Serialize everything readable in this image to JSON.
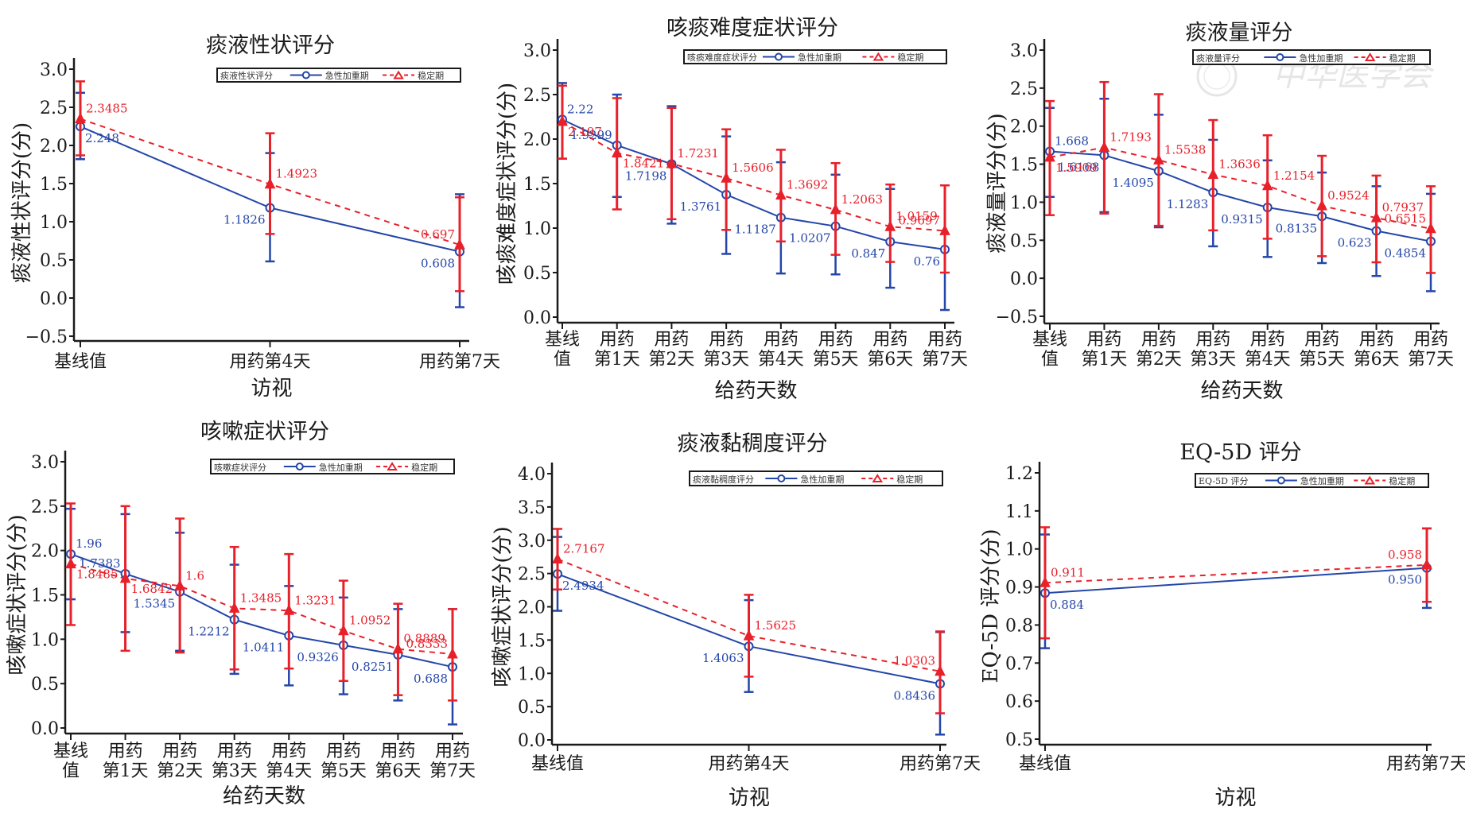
{
  "colors": {
    "acute": "#2446a8",
    "stable": "#e8202a",
    "axis": "#1a1a1a",
    "watermark": "#e3e3e3"
  },
  "watermark": {
    "text": "中华医学会"
  },
  "legend_series": {
    "acute": "急性加重期",
    "stable": "稳定期"
  },
  "chart_data": [
    {
      "type": "line",
      "title": "痰液性状评分",
      "xlabel": "访视",
      "ylabel": "痰液性状评分(分)",
      "legend_title": "痰液性状评分",
      "legend_position": "top-right",
      "ylim": [
        -0.5,
        3.0
      ],
      "yticks": [
        -0.5,
        0.0,
        0.5,
        1.0,
        1.5,
        2.0,
        2.5,
        3.0
      ],
      "ytick_labels": [
        "−0.5",
        "0.0",
        "0.5",
        "1.0",
        "1.5",
        "2.0",
        "2.5",
        "3.0"
      ],
      "categories": [
        [
          "基线值"
        ],
        [
          "用药第4天"
        ],
        [
          "用药第7天"
        ]
      ],
      "series": [
        {
          "name": "急性加重期",
          "key": "acute",
          "values": [
            2.248,
            1.1826,
            0.608
          ],
          "labels": [
            "2.248",
            "1.1826",
            "0.608"
          ],
          "err_low": [
            1.82,
            0.48,
            -0.12
          ],
          "err_high": [
            2.69,
            1.9,
            1.36
          ]
        },
        {
          "name": "稳定期",
          "key": "stable",
          "values": [
            2.3485,
            1.4923,
            0.697
          ],
          "labels": [
            "2.3485",
            "1.4923",
            "0.697"
          ],
          "err_low": [
            1.87,
            0.84,
            0.09
          ],
          "err_high": [
            2.84,
            2.16,
            1.32
          ]
        }
      ]
    },
    {
      "type": "line",
      "title": "咳痰难度症状评分",
      "xlabel": "给药天数",
      "ylabel": "咳痰难度症状评分(分)",
      "legend_title": "咳痰难度症状评分",
      "legend_position": "top-right",
      "ylim": [
        0.0,
        3.0
      ],
      "yticks": [
        0.0,
        0.5,
        1.0,
        1.5,
        2.0,
        2.5,
        3.0
      ],
      "ytick_labels": [
        "0.0",
        "0.5",
        "1.0",
        "1.5",
        "2.0",
        "2.5",
        "3.0"
      ],
      "categories": [
        [
          "基线",
          "值"
        ],
        [
          "用药",
          "第1天"
        ],
        [
          "用药",
          "第2天"
        ],
        [
          "用药",
          "第3天"
        ],
        [
          "用药",
          "第4天"
        ],
        [
          "用药",
          "第5天"
        ],
        [
          "用药",
          "第6天"
        ],
        [
          "用药",
          "第7天"
        ]
      ],
      "series": [
        {
          "name": "急性加重期",
          "key": "acute",
          "values": [
            2.22,
            1.9299,
            1.7198,
            1.3761,
            1.1187,
            1.0207,
            0.847,
            0.76
          ],
          "labels": [
            "2.22",
            "1.9299",
            "1.7198",
            "1.3761",
            "1.1187",
            "1.0207",
            "0.847",
            "0.76"
          ],
          "err_low": [
            1.78,
            1.35,
            1.05,
            0.71,
            0.49,
            0.48,
            0.33,
            0.08
          ],
          "err_high": [
            2.63,
            2.5,
            2.37,
            2.03,
            1.74,
            1.6,
            1.44,
            1.48
          ]
        },
        {
          "name": "稳定期",
          "key": "stable",
          "values": [
            2.197,
            1.8421,
            1.7231,
            1.5606,
            1.3692,
            1.2063,
            1.0159,
            0.9697
          ],
          "labels": [
            "2.197",
            "1.8421",
            "1.7231",
            "1.5606",
            "1.3692",
            "1.2063",
            "1.0159",
            "0.9697"
          ],
          "err_low": [
            1.78,
            1.21,
            1.1,
            0.98,
            0.85,
            0.7,
            0.62,
            0.5
          ],
          "err_high": [
            2.6,
            2.46,
            2.35,
            2.11,
            1.88,
            1.73,
            1.49,
            1.48
          ]
        }
      ]
    },
    {
      "type": "line",
      "title": "痰液量评分",
      "xlabel": "给药天数",
      "ylabel": "痰液量评分(分)",
      "legend_title": "痰液量评分",
      "legend_position": "top-right",
      "ylim": [
        -0.5,
        3.0
      ],
      "yticks": [
        -0.5,
        0.0,
        0.5,
        1.0,
        1.5,
        2.0,
        2.5,
        3.0
      ],
      "ytick_labels": [
        "−0.5",
        "0.0",
        "0.5",
        "1.0",
        "1.5",
        "2.0",
        "2.5",
        "3.0"
      ],
      "categories": [
        [
          "基线",
          "值"
        ],
        [
          "用药",
          "第1天"
        ],
        [
          "用药",
          "第2天"
        ],
        [
          "用药",
          "第3天"
        ],
        [
          "用药",
          "第4天"
        ],
        [
          "用药",
          "第5天"
        ],
        [
          "用药",
          "第6天"
        ],
        [
          "用药",
          "第7天"
        ]
      ],
      "series": [
        {
          "name": "急性加重期",
          "key": "acute",
          "values": [
            1.668,
            1.6168,
            1.4095,
            1.1283,
            0.9315,
            0.8135,
            0.623,
            0.4854
          ],
          "labels": [
            "1.668",
            "1.6168",
            "1.4095",
            "1.1283",
            "0.9315",
            "0.8135",
            "0.623",
            "0.4854"
          ],
          "err_low": [
            1.07,
            0.87,
            0.67,
            0.42,
            0.28,
            0.2,
            0.03,
            -0.17
          ],
          "err_high": [
            2.24,
            2.36,
            2.15,
            1.82,
            1.55,
            1.39,
            1.21,
            1.11
          ]
        },
        {
          "name": "稳定期",
          "key": "stable",
          "values": [
            1.5909,
            1.7193,
            1.5538,
            1.3636,
            1.2154,
            0.9524,
            0.7937,
            0.6515
          ],
          "labels": [
            "1.5909",
            "1.7193",
            "1.5538",
            "1.3636",
            "1.2154",
            "0.9524",
            "0.7937",
            "0.6515"
          ],
          "err_low": [
            0.83,
            0.85,
            0.69,
            0.63,
            0.52,
            0.29,
            0.21,
            0.07
          ],
          "err_high": [
            2.33,
            2.58,
            2.42,
            2.08,
            1.88,
            1.61,
            1.35,
            1.21
          ]
        }
      ]
    },
    {
      "type": "line",
      "title": "咳嗽症状评分",
      "xlabel": "给药天数",
      "ylabel": "咳嗽症状评分(分)",
      "legend_title": "咳嗽症状评分",
      "legend_position": "top-right",
      "ylim": [
        0.0,
        3.0
      ],
      "yticks": [
        0.0,
        0.5,
        1.0,
        1.5,
        2.0,
        2.5,
        3.0
      ],
      "ytick_labels": [
        "0.0",
        "0.5",
        "1.0",
        "1.5",
        "2.0",
        "2.5",
        "3.0"
      ],
      "categories": [
        [
          "基线",
          "值"
        ],
        [
          "用药",
          "第1天"
        ],
        [
          "用药",
          "第2天"
        ],
        [
          "用药",
          "第3天"
        ],
        [
          "用药",
          "第4天"
        ],
        [
          "用药",
          "第5天"
        ],
        [
          "用药",
          "第6天"
        ],
        [
          "用药",
          "第7天"
        ]
      ],
      "series": [
        {
          "name": "急性加重期",
          "key": "acute",
          "values": [
            1.96,
            1.7383,
            1.5345,
            1.2212,
            1.0411,
            0.9326,
            0.8251,
            0.688
          ],
          "labels": [
            "1.96",
            "1.7383",
            "1.5345",
            "1.2212",
            "1.0411",
            "0.9326",
            "0.8251",
            "0.688"
          ],
          "err_low": [
            1.45,
            1.08,
            0.87,
            0.61,
            0.48,
            0.38,
            0.31,
            0.04
          ],
          "err_high": [
            2.47,
            2.41,
            2.2,
            1.84,
            1.6,
            1.47,
            1.34,
            1.34
          ]
        },
        {
          "name": "稳定期",
          "key": "stable",
          "values": [
            1.8485,
            1.6842,
            1.6,
            1.3485,
            1.3231,
            1.0952,
            0.8889,
            0.8333
          ],
          "labels": [
            "1.8485",
            "1.6842",
            "1.6",
            "1.3485",
            "1.3231",
            "1.0952",
            "0.8889",
            "0.8333"
          ],
          "err_low": [
            1.16,
            0.87,
            0.85,
            0.66,
            0.67,
            0.53,
            0.37,
            0.31
          ],
          "err_high": [
            2.53,
            2.5,
            2.36,
            2.04,
            1.96,
            1.66,
            1.4,
            1.34
          ]
        }
      ]
    },
    {
      "type": "line",
      "title": "痰液黏稠度评分",
      "xlabel": "访视",
      "ylabel": "咳嗽症状评分(分)",
      "legend_title": "痰液黏稠度评分",
      "legend_position": "top-right",
      "ylim": [
        0.0,
        4.0
      ],
      "yticks": [
        0.0,
        0.5,
        1.0,
        1.5,
        2.0,
        2.5,
        3.0,
        3.5,
        4.0
      ],
      "ytick_labels": [
        "0.0",
        "0.5",
        "1.0",
        "1.5",
        "2.0",
        "2.5",
        "3.0",
        "3.5",
        "4.0"
      ],
      "categories": [
        [
          "基线值"
        ],
        [
          "用药第4天"
        ],
        [
          "用药第7天"
        ]
      ],
      "series": [
        {
          "name": "急性加重期",
          "key": "acute",
          "values": [
            2.4934,
            1.4063,
            0.8436
          ],
          "labels": [
            "2.4934",
            "1.4063",
            "0.8436"
          ],
          "err_low": [
            1.94,
            0.72,
            0.08
          ],
          "err_high": [
            3.05,
            2.1,
            1.62
          ]
        },
        {
          "name": "稳定期",
          "key": "stable",
          "values": [
            2.7167,
            1.5625,
            1.0303
          ],
          "labels": [
            "2.7167",
            "1.5625",
            "1.0303"
          ],
          "err_low": [
            2.26,
            0.95,
            0.4
          ],
          "err_high": [
            3.17,
            2.18,
            1.63
          ]
        }
      ]
    },
    {
      "type": "line",
      "title": "EQ-5D 评分",
      "xlabel": "访视",
      "ylabel": "EQ-5D 评分(分)",
      "legend_title": "EQ-5D 评分",
      "legend_position": "top-right",
      "ylim": [
        0.5,
        1.2
      ],
      "yticks": [
        0.5,
        0.6,
        0.7,
        0.8,
        0.9,
        1.0,
        1.1,
        1.2
      ],
      "ytick_labels": [
        "0.5",
        "0.6",
        "0.7",
        "0.8",
        "0.9",
        "1.0",
        "1.1",
        "1.2"
      ],
      "categories": [
        [
          "基线值"
        ],
        [
          "用药第7天"
        ]
      ],
      "series": [
        {
          "name": "急性加重期",
          "key": "acute",
          "values": [
            0.884,
            0.95
          ],
          "labels": [
            "0.884",
            "0.950"
          ],
          "err_low": [
            0.739,
            0.845
          ],
          "err_high": [
            1.038,
            1.054
          ]
        },
        {
          "name": "稳定期",
          "key": "stable",
          "values": [
            0.911,
            0.958
          ],
          "labels": [
            "0.911",
            "0.958"
          ],
          "err_low": [
            0.765,
            0.861
          ],
          "err_high": [
            1.057,
            1.054
          ]
        }
      ]
    }
  ]
}
